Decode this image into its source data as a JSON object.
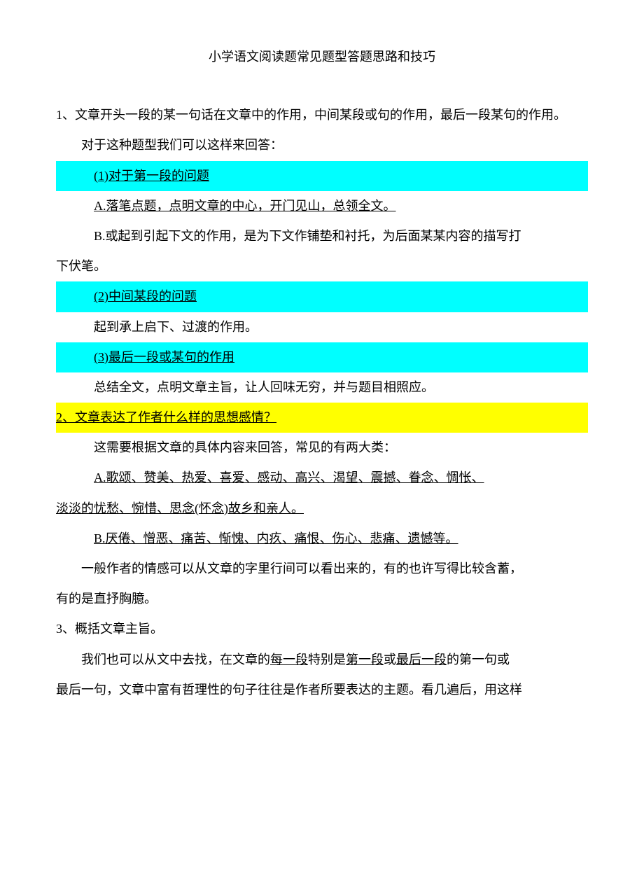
{
  "title": "小学语文阅读题常见题型答题思路和技巧",
  "section1": {
    "heading": "1、文章开头一段的某一句话在文章中的作用，中间某段或句的作用，最后一段某句的作用。",
    "intro": "对于这种题型我们可以这样来回答：",
    "point1": "(1)对于第一段的问题",
    "answer1a": "A.落笔点题，点明文章的中心，开门见山，总领全文。",
    "answer1b": "B.或起到引起下文的作用，是为下文作铺垫和衬托，为后面某某内容的描写打",
    "answer1b_cont": "下伏笔。",
    "point2": "(2)中间某段的问题",
    "answer2": "起到承上启下、过渡的作用。",
    "point3": "(3)最后一段或某句的作用",
    "answer3": "总结全文，点明文章主旨，让人回味无穷，并与题目相照应。"
  },
  "section2": {
    "heading": "2、文章表达了作者什么样的思想感情？",
    "intro": "这需要根据文章的具体内容来回答，常见的有两大类：",
    "answerA": "A.歌颂、赞美、热爱、喜爱、感动、高兴、渴望、震撼、眷念、惆怅、",
    "answerA_cont": "淡淡的忧愁、惋惜、思念(怀念)故乡和亲人。",
    "answerB": "B.厌倦、憎恶、痛苦、惭愧、内疚、痛恨、伤心、悲痛、遗憾等。",
    "note": "一般作者的情感可以从文章的字里行间可以看出来的，有的也许写得比较含蓄，",
    "note_cont": "有的是直抒胸臆。"
  },
  "section3": {
    "heading": "3、概括文章主旨。",
    "text1_pre": "我们也可以从文中去找，在文章的",
    "text1_u1": "每一段",
    "text1_mid1": "特别是",
    "text1_u2": "第一段",
    "text1_mid2": "或",
    "text1_u3": "最后一段",
    "text1_post": "的第一句或",
    "text2": "最后一句，文章中富有哲理性的句子往往是作者所要表达的主题。看几遍后，用这样"
  },
  "colors": {
    "highlight_cyan": "#00ffff",
    "highlight_yellow": "#ffff00",
    "text_color": "#000000",
    "background": "#ffffff"
  }
}
